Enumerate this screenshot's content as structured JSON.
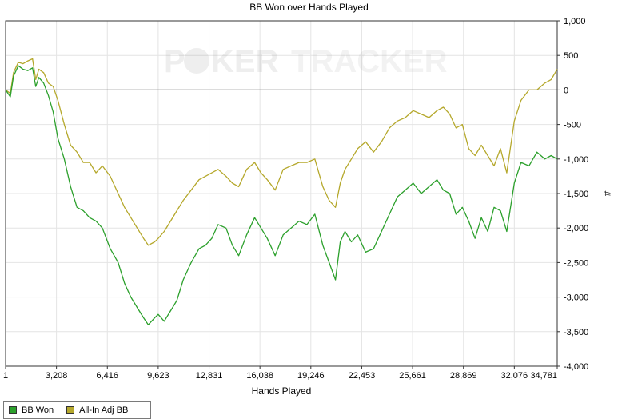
{
  "chart_data": {
    "type": "line",
    "title": "BB Won over Hands Played",
    "xlabel": "Hands Played",
    "ylabel": "#",
    "watermark": {
      "left": "P",
      "mid": "KER",
      "right": "TRACKER"
    },
    "xlim": [
      1,
      34781
    ],
    "ylim": [
      -4000,
      1000
    ],
    "xticks": [
      1,
      3208,
      6416,
      9623,
      12831,
      16038,
      19246,
      22453,
      25661,
      28869,
      32076,
      34781
    ],
    "xtick_labels": [
      "1",
      "3,208",
      "6,416",
      "9,623",
      "12,831",
      "16,038",
      "19,246",
      "22,453",
      "25,661",
      "28,869",
      "32,076",
      "34,781"
    ],
    "yticks": [
      1000,
      500,
      0,
      -500,
      -1000,
      -1500,
      -2000,
      -2500,
      -3000,
      -3500,
      -4000
    ],
    "ytick_labels": [
      "1,000",
      "500",
      "0",
      "-500",
      "-1,000",
      "-1,500",
      "-2,000",
      "-2,500",
      "-3,000",
      "-3,500",
      "-4,000"
    ],
    "grid": true,
    "legend_position": "bottom-left",
    "series": [
      {
        "name": "BB Won",
        "color": "#2ca02c",
        "x": [
          1,
          300,
          500,
          800,
          1100,
          1400,
          1700,
          1900,
          2100,
          2400,
          2700,
          3000,
          3300,
          3700,
          4100,
          4500,
          4900,
          5300,
          5700,
          6100,
          6600,
          7100,
          7500,
          7900,
          8300,
          8700,
          9000,
          9400,
          9623,
          10000,
          10400,
          10800,
          11200,
          11700,
          12200,
          12600,
          13000,
          13400,
          13900,
          14300,
          14700,
          15200,
          15700,
          16100,
          16500,
          17000,
          17500,
          18000,
          18500,
          19000,
          19500,
          20000,
          20400,
          20800,
          21100,
          21400,
          21800,
          22200,
          22700,
          23200,
          23700,
          24200,
          24700,
          25200,
          25700,
          26200,
          26700,
          27200,
          27600,
          28000,
          28400,
          28800,
          29200,
          29600,
          30000,
          30400,
          30800,
          31200,
          31600,
          32076,
          32500,
          33000,
          33500,
          34000,
          34400,
          34781
        ],
        "y": [
          0,
          -100,
          200,
          350,
          300,
          280,
          320,
          50,
          180,
          100,
          -80,
          -320,
          -700,
          -1000,
          -1400,
          -1700,
          -1750,
          -1850,
          -1900,
          -2000,
          -2300,
          -2500,
          -2800,
          -3000,
          -3150,
          -3300,
          -3400,
          -3300,
          -3250,
          -3350,
          -3200,
          -3050,
          -2750,
          -2500,
          -2300,
          -2250,
          -2150,
          -1950,
          -2000,
          -2250,
          -2400,
          -2100,
          -1850,
          -2000,
          -2150,
          -2400,
          -2100,
          -2000,
          -1900,
          -1950,
          -1800,
          -2250,
          -2500,
          -2750,
          -2200,
          -2050,
          -2200,
          -2100,
          -2350,
          -2300,
          -2050,
          -1800,
          -1550,
          -1450,
          -1350,
          -1500,
          -1400,
          -1300,
          -1450,
          -1500,
          -1800,
          -1700,
          -1900,
          -2150,
          -1850,
          -2050,
          -1700,
          -1750,
          -2050,
          -1350,
          -1050,
          -1100,
          -900,
          -1000,
          -950,
          -1000
        ]
      },
      {
        "name": "All-In Adj BB",
        "color": "#b5a82c",
        "x": [
          1,
          300,
          500,
          800,
          1100,
          1400,
          1700,
          1900,
          2100,
          2400,
          2700,
          3000,
          3300,
          3700,
          4100,
          4500,
          4900,
          5300,
          5700,
          6100,
          6600,
          7100,
          7500,
          7900,
          8300,
          8700,
          9000,
          9400,
          9623,
          10000,
          10400,
          10800,
          11200,
          11700,
          12200,
          12600,
          13000,
          13400,
          13900,
          14300,
          14700,
          15200,
          15700,
          16100,
          16500,
          17000,
          17500,
          18000,
          18500,
          19000,
          19500,
          20000,
          20400,
          20800,
          21100,
          21400,
          21800,
          22200,
          22700,
          23200,
          23700,
          24200,
          24700,
          25200,
          25700,
          26200,
          26700,
          27200,
          27600,
          28000,
          28400,
          28800,
          29200,
          29600,
          30000,
          30400,
          30800,
          31200,
          31600,
          32076,
          32500,
          33000,
          33500,
          34000,
          34400,
          34781
        ],
        "y": [
          0,
          -50,
          250,
          400,
          380,
          420,
          450,
          150,
          300,
          250,
          100,
          50,
          -150,
          -500,
          -800,
          -900,
          -1050,
          -1050,
          -1200,
          -1100,
          -1250,
          -1500,
          -1700,
          -1850,
          -2000,
          -2150,
          -2250,
          -2200,
          -2150,
          -2050,
          -1900,
          -1750,
          -1600,
          -1450,
          -1300,
          -1250,
          -1200,
          -1150,
          -1250,
          -1350,
          -1400,
          -1150,
          -1050,
          -1200,
          -1300,
          -1450,
          -1150,
          -1100,
          -1050,
          -1050,
          -1000,
          -1400,
          -1600,
          -1700,
          -1350,
          -1150,
          -1000,
          -850,
          -750,
          -900,
          -750,
          -550,
          -450,
          -400,
          -300,
          -350,
          -400,
          -300,
          -250,
          -350,
          -550,
          -500,
          -850,
          -950,
          -800,
          -950,
          -1100,
          -850,
          -1200,
          -450,
          -150,
          0,
          0,
          100,
          150,
          300
        ]
      }
    ]
  }
}
